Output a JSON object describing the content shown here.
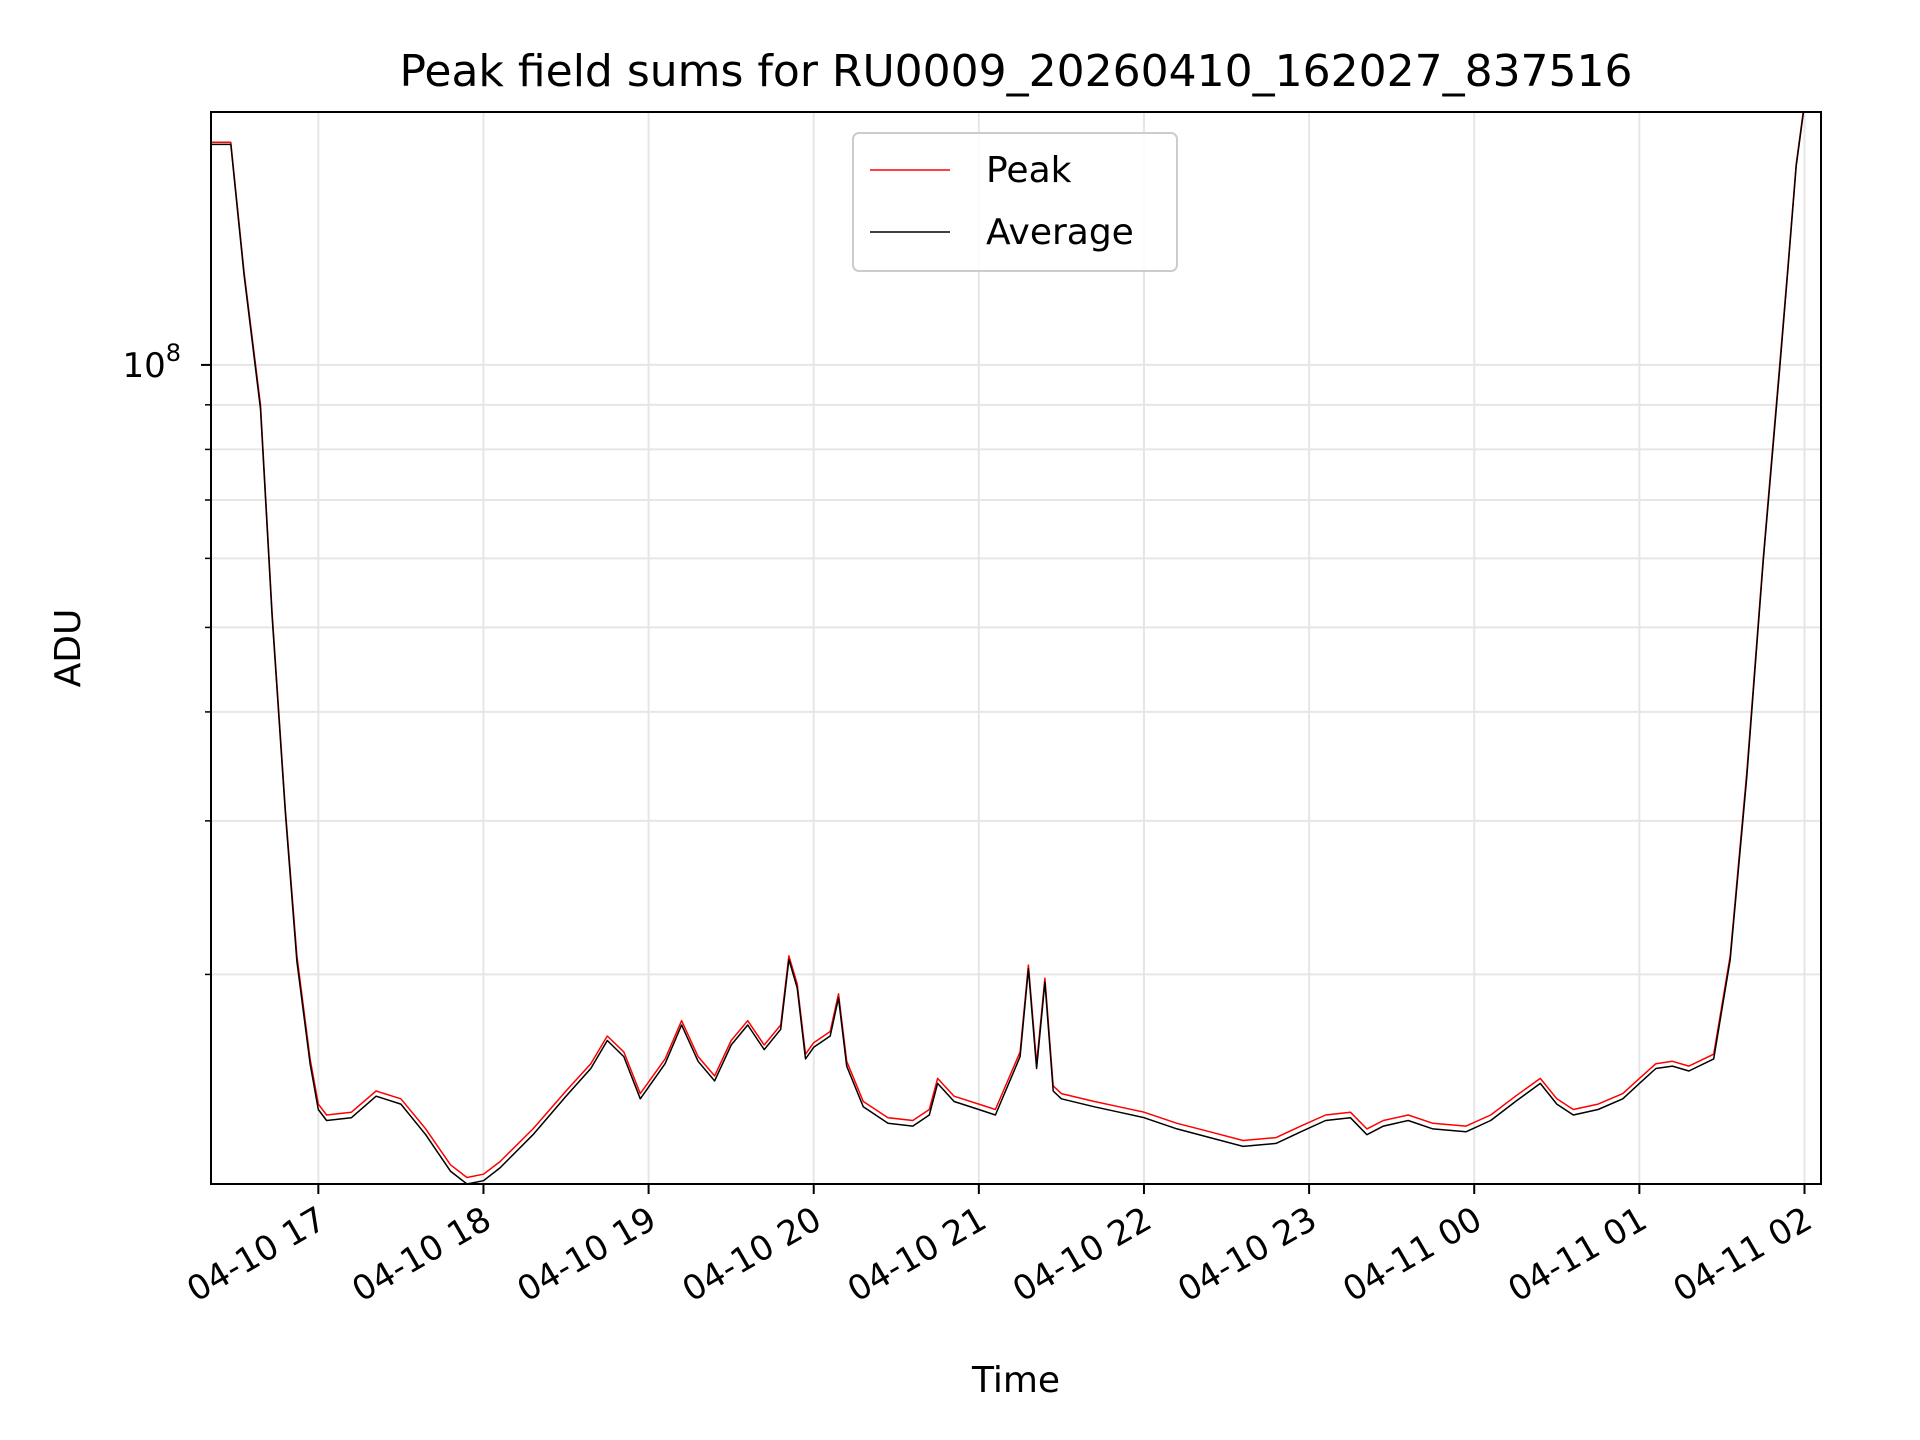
{
  "chart_data": {
    "type": "line",
    "title": "Peak field sums for RU0009_20260410_162027_837516",
    "xlabel": "Time",
    "ylabel": "ADU",
    "yscale": "log",
    "ylim": [
      11500000,
      195000000
    ],
    "y_tick_labels": [
      {
        "base": "10",
        "exp": "8",
        "value": 100000000
      }
    ],
    "y_minor_ticks": [
      20000000,
      30000000,
      40000000,
      50000000,
      60000000,
      70000000,
      80000000,
      90000000
    ],
    "x_hours_range": [
      16.35,
      26.1
    ],
    "x_ticks": [
      {
        "label": "04-10 17",
        "hour": 17
      },
      {
        "label": "04-10 18",
        "hour": 18
      },
      {
        "label": "04-10 19",
        "hour": 19
      },
      {
        "label": "04-10 20",
        "hour": 20
      },
      {
        "label": "04-10 21",
        "hour": 21
      },
      {
        "label": "04-10 22",
        "hour": 22
      },
      {
        "label": "04-10 23",
        "hour": 23
      },
      {
        "label": "04-11 00",
        "hour": 24
      },
      {
        "label": "04-11 01",
        "hour": 25
      },
      {
        "label": "04-11 02",
        "hour": 26
      }
    ],
    "grid": true,
    "legend_position": "top-center",
    "series": [
      {
        "name": "Peak",
        "color": "#ff0000",
        "x": [
          16.35,
          16.45,
          16.47,
          16.55,
          16.65,
          16.72,
          16.8,
          16.87,
          16.95,
          17.0,
          17.05,
          17.2,
          17.35,
          17.5,
          17.65,
          17.8,
          17.9,
          18.0,
          18.1,
          18.3,
          18.5,
          18.65,
          18.75,
          18.85,
          18.95,
          19.1,
          19.2,
          19.3,
          19.4,
          19.5,
          19.6,
          19.7,
          19.8,
          19.85,
          19.9,
          19.95,
          20.0,
          20.1,
          20.15,
          20.2,
          20.3,
          20.45,
          20.6,
          20.7,
          20.75,
          20.85,
          21.0,
          21.1,
          21.25,
          21.3,
          21.35,
          21.4,
          21.45,
          21.5,
          21.7,
          21.85,
          22.0,
          22.2,
          22.4,
          22.6,
          22.8,
          22.95,
          23.1,
          23.25,
          23.35,
          23.45,
          23.6,
          23.75,
          23.95,
          24.1,
          24.25,
          24.4,
          24.5,
          24.6,
          24.75,
          24.9,
          25.0,
          25.1,
          25.2,
          25.3,
          25.45,
          25.55,
          25.65,
          25.75,
          25.85,
          25.9,
          25.95,
          26.0,
          26.03
        ],
        "y": [
          180000000,
          180000000,
          180000000,
          128000000,
          90000000,
          52000000,
          31000000,
          21000000,
          16000000,
          14200000,
          13800000,
          13900000,
          14700000,
          14400000,
          13300000,
          12100000,
          11700000,
          11800000,
          12200000,
          13300000,
          14700000,
          15800000,
          17000000,
          16300000,
          14600000,
          16000000,
          17700000,
          16100000,
          15300000,
          16800000,
          17700000,
          16600000,
          17500000,
          21000000,
          19500000,
          16200000,
          16700000,
          17200000,
          19000000,
          15900000,
          14300000,
          13700000,
          13600000,
          14000000,
          15200000,
          14500000,
          14200000,
          14000000,
          16300000,
          20500000,
          15800000,
          19800000,
          14900000,
          14600000,
          14300000,
          14100000,
          13900000,
          13500000,
          13200000,
          12900000,
          13000000,
          13400000,
          13800000,
          13900000,
          13300000,
          13600000,
          13800000,
          13500000,
          13400000,
          13800000,
          14500000,
          15200000,
          14400000,
          14000000,
          14200000,
          14600000,
          15200000,
          15800000,
          15900000,
          15700000,
          16200000,
          21000000,
          34000000,
          60000000,
          100000000,
          130000000,
          170000000,
          200000000,
          200000000
        ]
      },
      {
        "name": "Average",
        "color": "#000000",
        "x": [
          16.35,
          16.45,
          16.47,
          16.55,
          16.65,
          16.72,
          16.8,
          16.87,
          16.95,
          17.0,
          17.05,
          17.2,
          17.35,
          17.5,
          17.65,
          17.8,
          17.9,
          18.0,
          18.1,
          18.3,
          18.5,
          18.65,
          18.75,
          18.85,
          18.95,
          19.1,
          19.2,
          19.3,
          19.4,
          19.5,
          19.6,
          19.7,
          19.8,
          19.85,
          19.9,
          19.95,
          20.0,
          20.1,
          20.15,
          20.2,
          20.3,
          20.45,
          20.6,
          20.7,
          20.75,
          20.85,
          21.0,
          21.1,
          21.25,
          21.3,
          21.35,
          21.4,
          21.45,
          21.5,
          21.7,
          21.85,
          22.0,
          22.2,
          22.4,
          22.6,
          22.8,
          22.95,
          23.1,
          23.25,
          23.35,
          23.45,
          23.6,
          23.75,
          23.95,
          24.1,
          24.25,
          24.4,
          24.5,
          24.6,
          24.75,
          24.9,
          25.0,
          25.1,
          25.2,
          25.3,
          25.45,
          25.55,
          25.65,
          25.75,
          25.85,
          25.9,
          25.95,
          26.0,
          26.03
        ],
        "y": [
          179000000,
          179000000,
          179000000,
          127000000,
          89000000,
          51500000,
          30700000,
          20700000,
          15800000,
          14000000,
          13600000,
          13700000,
          14500000,
          14200000,
          13100000,
          11900000,
          11500000,
          11600000,
          12000000,
          13100000,
          14500000,
          15600000,
          16800000,
          16100000,
          14400000,
          15800000,
          17500000,
          15900000,
          15100000,
          16600000,
          17500000,
          16400000,
          17300000,
          20800000,
          19300000,
          16000000,
          16500000,
          17000000,
          18800000,
          15700000,
          14100000,
          13500000,
          13400000,
          13800000,
          15000000,
          14300000,
          14000000,
          13800000,
          16100000,
          20300000,
          15600000,
          19600000,
          14700000,
          14400000,
          14100000,
          13900000,
          13700000,
          13300000,
          13000000,
          12700000,
          12800000,
          13200000,
          13600000,
          13700000,
          13100000,
          13400000,
          13600000,
          13300000,
          13200000,
          13600000,
          14300000,
          15000000,
          14200000,
          13800000,
          14000000,
          14400000,
          15000000,
          15600000,
          15700000,
          15500000,
          16000000,
          20800000,
          33600000,
          59500000,
          99000000,
          129000000,
          169000000,
          199000000,
          199000000
        ]
      }
    ]
  }
}
